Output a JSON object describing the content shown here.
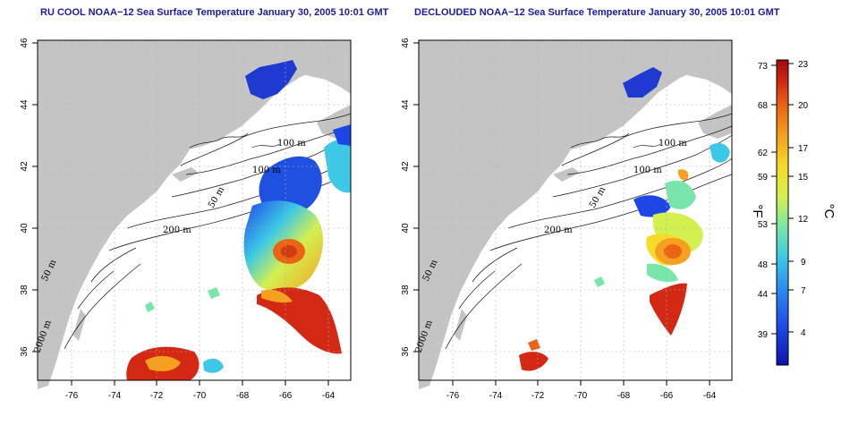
{
  "panels": [
    {
      "title": "RU COOL NOAA−12 Sea Surface Temperature January 30, 2005 10:01 GMT"
    },
    {
      "title": "DECLOUDED NOAA−12 Sea Surface Temperature January 30, 2005 10:01 GMT"
    }
  ],
  "axes": {
    "x_ticks": [
      "-76",
      "-74",
      "-72",
      "-70",
      "-68",
      "-66",
      "-64"
    ],
    "y_ticks": [
      "36",
      "38",
      "40",
      "42",
      "44",
      "46"
    ]
  },
  "contour_labels": {
    "c100a": "100 m",
    "c100b": "100 m",
    "c50a": "50 m",
    "c50b": "50 m",
    "c200": "200 m",
    "c2000": "2000 m"
  },
  "colorbar": {
    "fahrenheit_unit": "°F",
    "celsius_unit": "°C",
    "fahrenheit_ticks": [
      "73",
      "68",
      "62",
      "59",
      "53",
      "48",
      "44",
      "39"
    ],
    "celsius_ticks": [
      "23",
      "20",
      "17",
      "15",
      "12",
      "9",
      "7",
      "4"
    ]
  },
  "colors": {
    "land": "#c4c4c4",
    "ocean": "#ffffff",
    "title": "#1a1aa0",
    "grid": "#b0b0b0",
    "scale": [
      "#0a14a8",
      "#1e46e6",
      "#2a8cf0",
      "#3cc8e6",
      "#78e6aa",
      "#d2f050",
      "#f5dc28",
      "#f5a01e",
      "#eb6414",
      "#d22814",
      "#a00a0a"
    ]
  }
}
